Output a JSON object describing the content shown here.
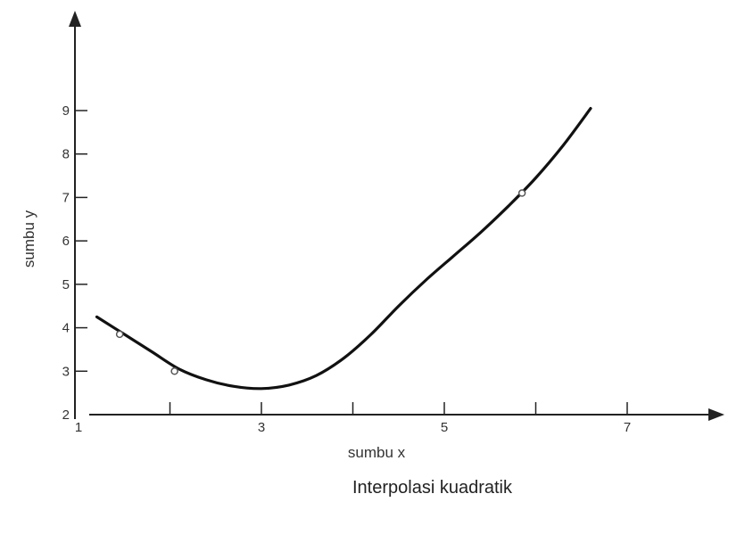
{
  "chart_data": {
    "type": "line",
    "title": "Interpolasi kuadratik",
    "xlabel": "sumbu x",
    "ylabel": "sumbu y",
    "xlim": [
      1,
      7
    ],
    "ylim": [
      2,
      9
    ],
    "x_ticks": [
      1,
      2,
      3,
      4,
      5,
      6,
      7
    ],
    "x_tick_labels": [
      "1",
      "3",
      "5",
      "7"
    ],
    "x_tick_label_values": [
      1,
      3,
      5,
      7
    ],
    "y_ticks": [
      2,
      3,
      4,
      5,
      6,
      7,
      8,
      9
    ],
    "y_tick_labels": [
      "2",
      "3",
      "4",
      "5",
      "6",
      "7",
      "8",
      "9"
    ],
    "grid": false,
    "series": [
      {
        "curve": [
          [
            1.2,
            4.25
          ],
          [
            1.5,
            3.85
          ],
          [
            1.8,
            3.45
          ],
          [
            2.1,
            3.05
          ],
          [
            2.4,
            2.8
          ],
          [
            2.7,
            2.65
          ],
          [
            3.0,
            2.6
          ],
          [
            3.3,
            2.68
          ],
          [
            3.6,
            2.9
          ],
          [
            3.9,
            3.3
          ],
          [
            4.2,
            3.85
          ],
          [
            4.5,
            4.5
          ],
          [
            4.8,
            5.1
          ],
          [
            5.1,
            5.65
          ],
          [
            5.4,
            6.2
          ],
          [
            5.7,
            6.8
          ],
          [
            6.0,
            7.45
          ],
          [
            6.3,
            8.2
          ],
          [
            6.6,
            9.05
          ]
        ],
        "points": [
          [
            1.45,
            3.85
          ],
          [
            2.05,
            3.0
          ],
          [
            5.85,
            7.1
          ]
        ]
      }
    ]
  },
  "colors": {
    "axis": "#222222",
    "curve": "#111111",
    "marker": "#555555"
  }
}
